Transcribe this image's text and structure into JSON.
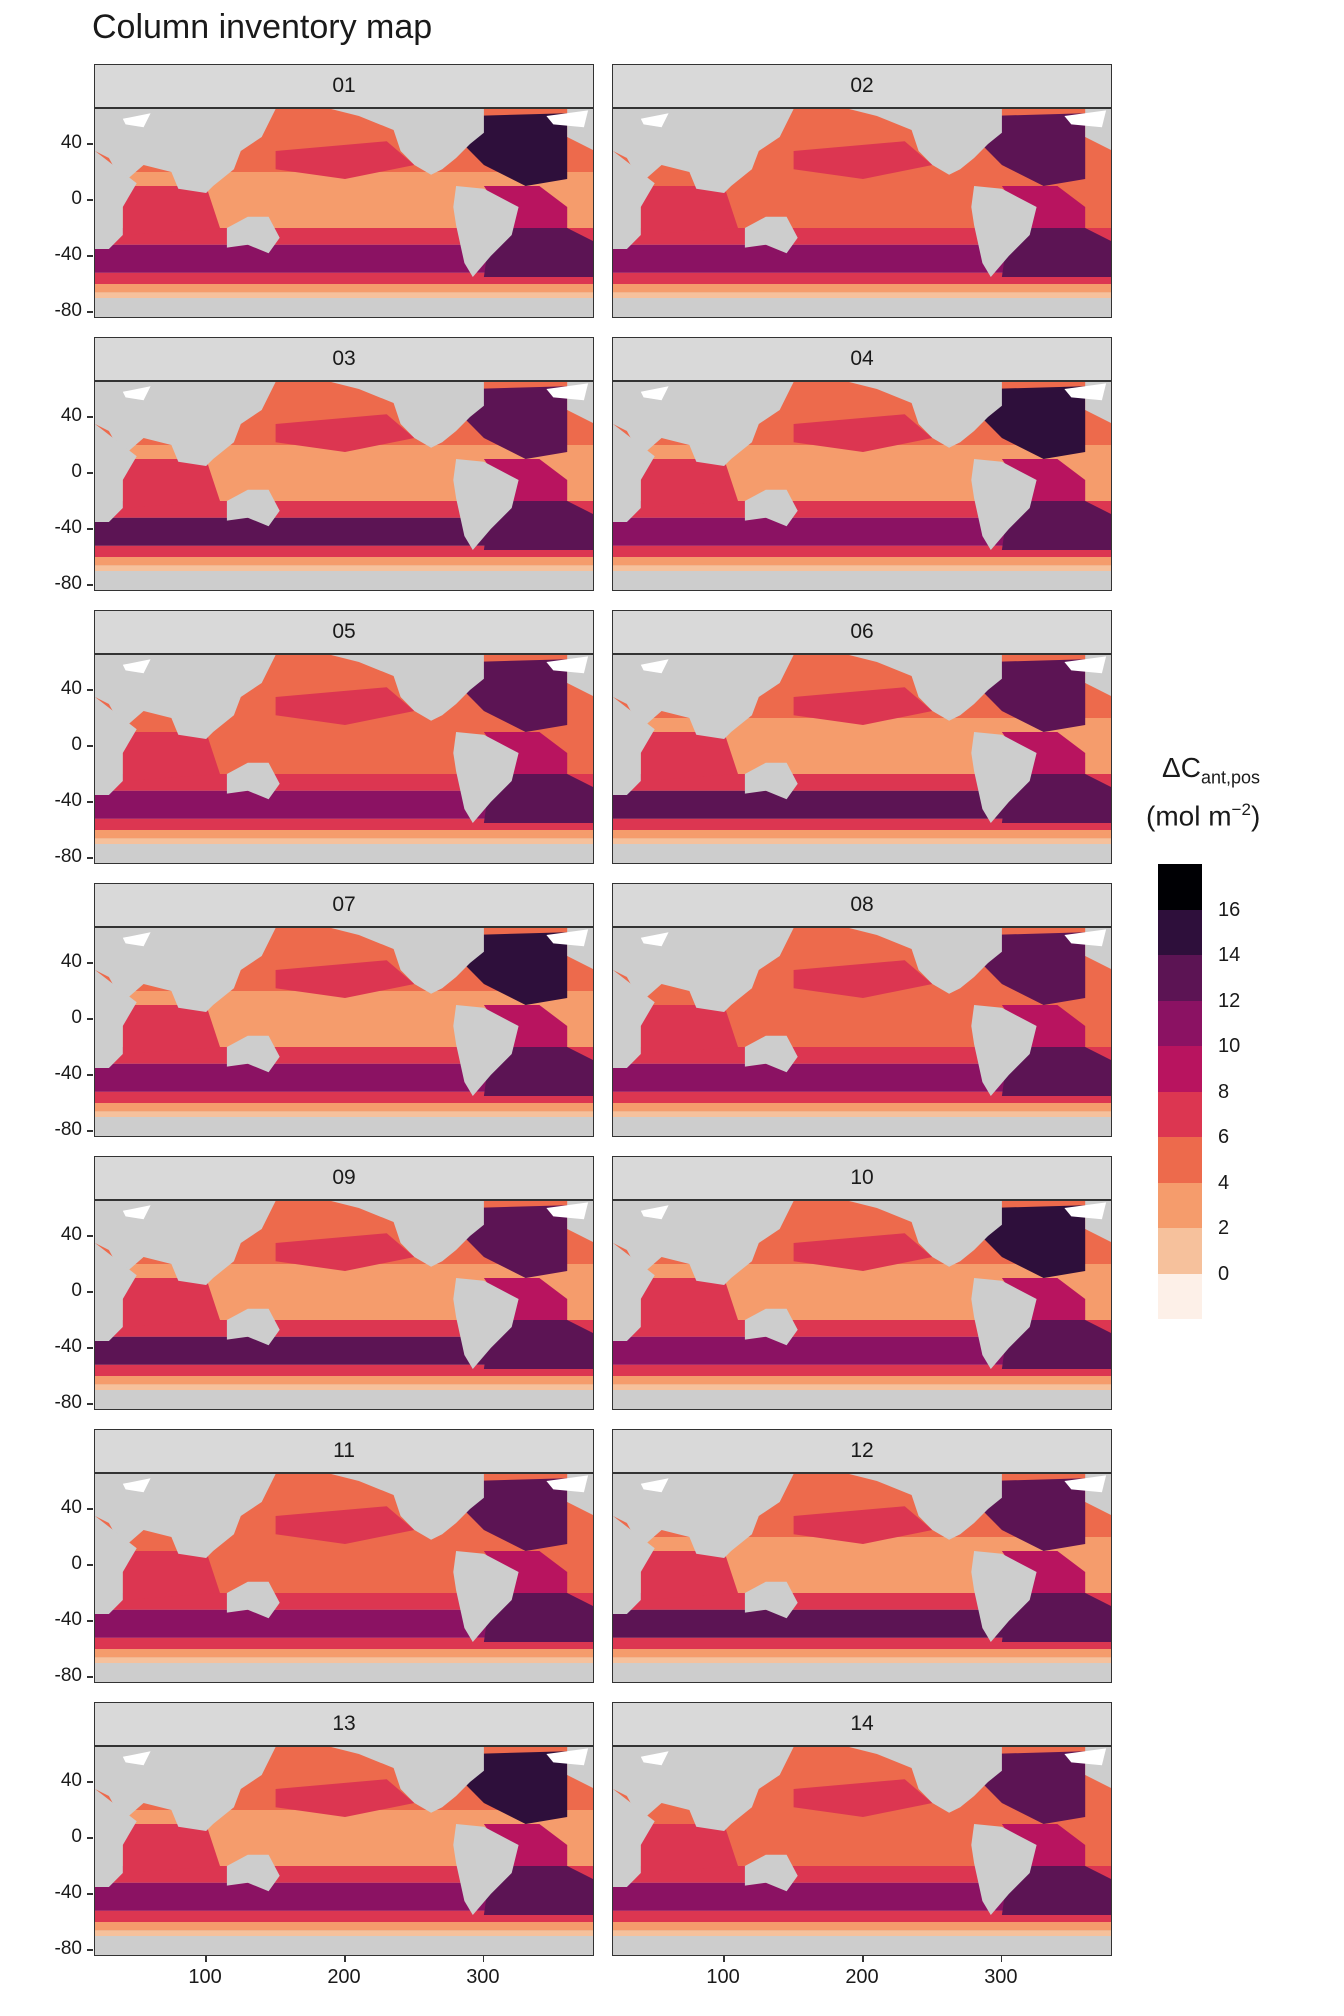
{
  "title": "Column inventory map",
  "panels": [
    "01",
    "02",
    "03",
    "04",
    "05",
    "06",
    "07",
    "08",
    "09",
    "10",
    "11",
    "12",
    "13",
    "14"
  ],
  "y_axis": {
    "ticks": [
      "40",
      "0",
      "-40",
      "-80"
    ],
    "values": [
      40,
      0,
      -40,
      -80
    ],
    "range": [
      -85,
      65
    ]
  },
  "x_axis": {
    "ticks": [
      "100",
      "200",
      "300"
    ],
    "values": [
      100,
      200,
      300
    ],
    "range": [
      20,
      380
    ]
  },
  "legend": {
    "title_main": "ΔC",
    "title_sub": "ant,pos",
    "unit_prefix": "(mol m",
    "unit_exp": "−2",
    "unit_suffix": ")",
    "labels": [
      "16",
      "14",
      "12",
      "10",
      "8",
      "6",
      "4",
      "2",
      "0"
    ],
    "colors": [
      "#000004",
      "#2e0f3b",
      "#5c1454",
      "#8b1263",
      "#b8145f",
      "#dc3651",
      "#ed6a4c",
      "#f59c6c",
      "#f6c19c",
      "#fdf0e8"
    ]
  },
  "colors": {
    "land": "#cdcdcd",
    "ice": "#ffffff",
    "strip": "#d9d9d9",
    "frame": "#333333"
  },
  "chart_data": {
    "type": "heatmap",
    "title": "Column inventory map",
    "facet_labels": [
      "01",
      "02",
      "03",
      "04",
      "05",
      "06",
      "07",
      "08",
      "09",
      "10",
      "11",
      "12",
      "13",
      "14"
    ],
    "xlabel": "",
    "ylabel": "",
    "xlim": [
      20,
      380
    ],
    "ylim": [
      -85,
      65
    ],
    "x_ticks": [
      100,
      200,
      300
    ],
    "y_ticks": [
      40,
      0,
      -40,
      -80
    ],
    "legend_title": "ΔCant,pos (mol m−2)",
    "legend_breaks": [
      0,
      2,
      4,
      6,
      8,
      10,
      12,
      14,
      16
    ]
  }
}
